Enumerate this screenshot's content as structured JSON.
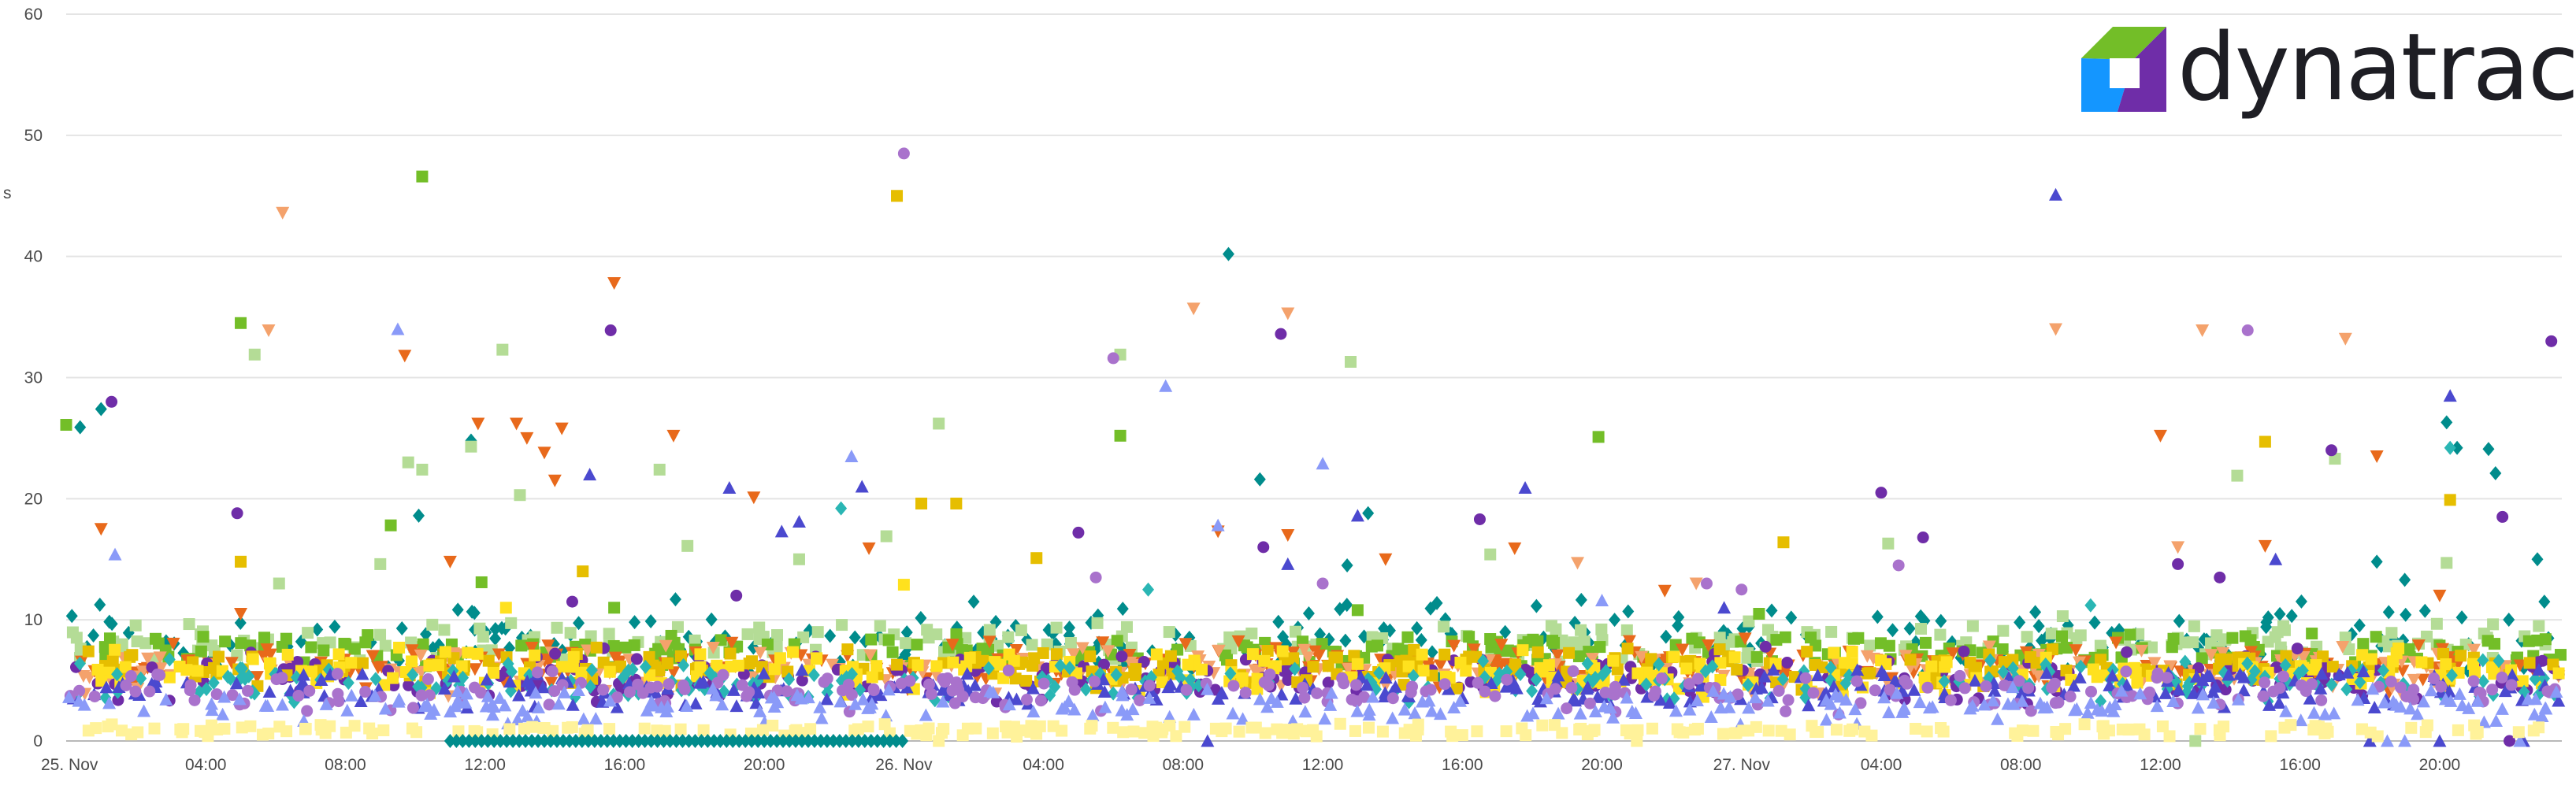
{
  "brand": {
    "name": "dynatrace",
    "logo_colors": [
      "#73be28",
      "#1496ff",
      "#6f2da8",
      "#1a6ef5"
    ]
  },
  "chart_data": {
    "type": "scatter",
    "title": "",
    "xlabel": "",
    "ylabel": "s",
    "ylim": [
      0,
      60
    ],
    "yticks": [
      0,
      10,
      20,
      30,
      40,
      50,
      60
    ],
    "xlim": [
      "25. Nov 00:00",
      "27. Nov 23:30"
    ],
    "xticks": [
      {
        "h": 0,
        "label": "25. Nov"
      },
      {
        "h": 4,
        "label": "04:00"
      },
      {
        "h": 8,
        "label": "08:00"
      },
      {
        "h": 12,
        "label": "12:00"
      },
      {
        "h": 16,
        "label": "16:00"
      },
      {
        "h": 20,
        "label": "20:00"
      },
      {
        "h": 24,
        "label": "26. Nov"
      },
      {
        "h": 28,
        "label": "04:00"
      },
      {
        "h": 32,
        "label": "08:00"
      },
      {
        "h": 36,
        "label": "12:00"
      },
      {
        "h": 40,
        "label": "16:00"
      },
      {
        "h": 44,
        "label": "20:00"
      },
      {
        "h": 48,
        "label": "27. Nov"
      },
      {
        "h": 52,
        "label": "04:00"
      },
      {
        "h": 56,
        "label": "08:00"
      },
      {
        "h": 60,
        "label": "12:00"
      },
      {
        "h": 64,
        "label": "16:00"
      },
      {
        "h": 68,
        "label": "20:00"
      }
    ],
    "grid": true,
    "legend": "none",
    "series": [
      {
        "color": "#e8691b",
        "marker": "triangle-down",
        "band": [
          4,
          8.5
        ],
        "outliers": [
          [
            1.0,
            17.5
          ],
          [
            5.0,
            10.5
          ],
          [
            9.7,
            31.8
          ],
          [
            11.0,
            14.8
          ],
          [
            11.8,
            26.2
          ],
          [
            12.9,
            26.2
          ],
          [
            13.2,
            25.0
          ],
          [
            13.7,
            23.8
          ],
          [
            14.0,
            21.5
          ],
          [
            14.2,
            25.8
          ],
          [
            15.7,
            37.8
          ],
          [
            17.4,
            25.2
          ],
          [
            19.7,
            20.1
          ],
          [
            23.0,
            15.9
          ],
          [
            33.0,
            17.3
          ],
          [
            35.0,
            17.0
          ],
          [
            37.8,
            15.0
          ],
          [
            41.5,
            15.9
          ],
          [
            45.8,
            12.4
          ],
          [
            60.0,
            25.2
          ],
          [
            63.0,
            16.1
          ],
          [
            66.2,
            23.5
          ],
          [
            68.0,
            12.0
          ]
        ]
      },
      {
        "color": "#f4a26c",
        "marker": "triangle-down",
        "band": [
          3.5,
          8
        ],
        "outliers": [
          [
            6.2,
            43.6
          ],
          [
            5.8,
            33.9
          ],
          [
            32.3,
            35.7
          ],
          [
            35.0,
            35.3
          ],
          [
            43.3,
            14.7
          ],
          [
            46.7,
            13.0
          ],
          [
            57.0,
            34.0
          ],
          [
            60.5,
            16.0
          ],
          [
            61.2,
            33.9
          ],
          [
            65.3,
            33.2
          ]
        ]
      },
      {
        "color": "#008c8c",
        "marker": "diamond",
        "band": [
          5,
          12
        ],
        "outliers": [
          [
            0.4,
            25.9
          ],
          [
            1.0,
            27.4
          ],
          [
            10.1,
            18.6
          ],
          [
            11.6,
            24.8
          ],
          [
            26.0,
            11.5
          ],
          [
            33.3,
            40.2
          ],
          [
            34.2,
            21.6
          ],
          [
            36.7,
            14.5
          ],
          [
            37.3,
            18.8
          ],
          [
            66.2,
            14.8
          ],
          [
            67.0,
            13.3
          ],
          [
            68.2,
            26.3
          ],
          [
            68.5,
            24.2
          ],
          [
            69.4,
            24.1
          ],
          [
            69.6,
            22.1
          ],
          [
            70.8,
            15.0
          ],
          [
            71.0,
            11.5
          ]
        ]
      },
      {
        "color": "#2ab6b4",
        "marker": "diamond",
        "band": [
          3,
          7
        ],
        "outliers": [
          [
            22.2,
            19.2
          ],
          [
            68.3,
            24.2
          ],
          [
            31.0,
            12.5
          ],
          [
            58.0,
            11.2
          ]
        ]
      },
      {
        "color": "#4b49cf",
        "marker": "triangle-up",
        "band": [
          2.5,
          6
        ],
        "outliers": [
          [
            15.0,
            22.0
          ],
          [
            19.0,
            20.9
          ],
          [
            20.5,
            17.3
          ],
          [
            21.0,
            18.1
          ],
          [
            22.8,
            21.0
          ],
          [
            32.7,
            0.0
          ],
          [
            35.0,
            14.6
          ],
          [
            37.0,
            18.6
          ],
          [
            41.8,
            20.9
          ],
          [
            47.5,
            11.0
          ],
          [
            57.0,
            45.1
          ],
          [
            63.3,
            15.0
          ],
          [
            68.3,
            28.5
          ],
          [
            66.0,
            0.0
          ],
          [
            68.0,
            0.0
          ],
          [
            70.4,
            0.0
          ]
        ]
      },
      {
        "color": "#8a9af8",
        "marker": "triangle-up",
        "band": [
          1.2,
          4.5
        ],
        "outliers": [
          [
            1.4,
            15.4
          ],
          [
            9.5,
            34.0
          ],
          [
            22.5,
            23.5
          ],
          [
            31.5,
            29.3
          ],
          [
            33.0,
            17.8
          ],
          [
            36.0,
            22.9
          ],
          [
            44.0,
            11.6
          ],
          [
            66.5,
            0.0
          ],
          [
            67.0,
            0.0
          ],
          [
            70.3,
            0.0
          ]
        ]
      },
      {
        "color": "#6f2da8",
        "marker": "circle",
        "band": [
          3,
          8
        ],
        "outliers": [
          [
            1.3,
            28.0
          ],
          [
            4.9,
            18.8
          ],
          [
            14.5,
            11.5
          ],
          [
            15.6,
            33.9
          ],
          [
            19.2,
            12.0
          ],
          [
            29.0,
            17.2
          ],
          [
            34.3,
            16.0
          ],
          [
            34.8,
            33.6
          ],
          [
            40.5,
            18.3
          ],
          [
            52.0,
            20.5
          ],
          [
            53.2,
            16.8
          ],
          [
            60.5,
            14.6
          ],
          [
            61.7,
            13.5
          ],
          [
            64.9,
            24.0
          ],
          [
            69.8,
            18.5
          ],
          [
            71.2,
            33.0
          ],
          [
            70.0,
            0.0
          ]
        ]
      },
      {
        "color": "#a972cc",
        "marker": "circle",
        "band": [
          2,
          6
        ],
        "outliers": [
          [
            24.0,
            48.5
          ],
          [
            29.5,
            13.5
          ],
          [
            30.0,
            31.6
          ],
          [
            36.0,
            13.0
          ],
          [
            47.0,
            13.0
          ],
          [
            48.0,
            12.5
          ],
          [
            52.5,
            14.5
          ],
          [
            62.5,
            33.9
          ]
        ]
      },
      {
        "color": "#73be28",
        "marker": "square",
        "band": [
          6,
          9
        ],
        "outliers": [
          [
            0.0,
            26.1
          ],
          [
            5.0,
            34.5
          ],
          [
            9.3,
            17.8
          ],
          [
            10.2,
            46.6
          ],
          [
            11.9,
            13.1
          ],
          [
            15.7,
            11.0
          ],
          [
            30.2,
            25.2
          ],
          [
            37.0,
            10.8
          ],
          [
            43.9,
            25.1
          ],
          [
            48.5,
            10.5
          ]
        ]
      },
      {
        "color": "#b4dc96",
        "marker": "square",
        "band": [
          6.5,
          10
        ],
        "outliers": [
          [
            5.4,
            31.9
          ],
          [
            6.1,
            13.0
          ],
          [
            9.0,
            14.6
          ],
          [
            9.8,
            23.0
          ],
          [
            10.2,
            22.4
          ],
          [
            11.6,
            24.3
          ],
          [
            12.5,
            32.3
          ],
          [
            13.0,
            20.3
          ],
          [
            17.0,
            22.4
          ],
          [
            17.8,
            16.1
          ],
          [
            21.0,
            15.0
          ],
          [
            23.5,
            16.9
          ],
          [
            25.0,
            26.2
          ],
          [
            30.2,
            31.9
          ],
          [
            36.8,
            31.3
          ],
          [
            40.8,
            15.4
          ],
          [
            52.2,
            16.3
          ],
          [
            57.2,
            10.3
          ],
          [
            62.2,
            21.9
          ],
          [
            65.0,
            23.3
          ],
          [
            68.2,
            14.7
          ],
          [
            61.0,
            0.0
          ]
        ]
      },
      {
        "color": "#e6be00",
        "marker": "square",
        "band": [
          4,
          8
        ],
        "outliers": [
          [
            5.0,
            14.8
          ],
          [
            14.8,
            14.0
          ],
          [
            23.8,
            45.0
          ],
          [
            24.5,
            19.6
          ],
          [
            25.5,
            19.6
          ],
          [
            27.8,
            15.1
          ],
          [
            49.2,
            16.4
          ],
          [
            63.0,
            24.7
          ],
          [
            68.3,
            19.9
          ]
        ]
      },
      {
        "color": "#ffe11e",
        "marker": "square",
        "band": [
          3.5,
          8
        ],
        "outliers": [
          [
            12.6,
            11.0
          ],
          [
            24.0,
            12.9
          ]
        ]
      },
      {
        "color": "#fff29a",
        "marker": "square",
        "band": [
          0.3,
          1.5
        ],
        "outliers": [
          [
            25.0,
            0.0
          ],
          [
            45.0,
            0.0
          ]
        ]
      }
    ],
    "baseline_run": {
      "color": "#008c8c",
      "marker": "diamond",
      "from_h": 11.0,
      "to_h": 24.0,
      "value": 0.0
    }
  }
}
